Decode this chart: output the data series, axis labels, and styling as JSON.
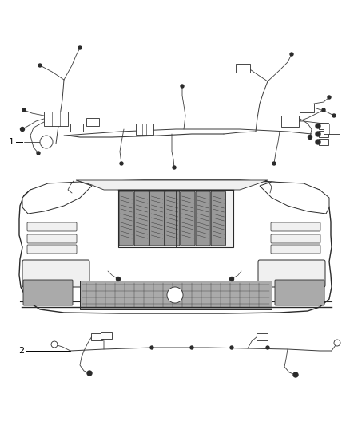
{
  "background_color": "#ffffff",
  "fig_width": 4.38,
  "fig_height": 5.33,
  "dpi": 100,
  "label_1": "1",
  "label_2": "2",
  "line_color": "#2a2a2a",
  "light_line": "#555555",
  "wire_color": "#3a3a3a",
  "fill_white": "#ffffff",
  "fill_light": "#f0f0f0",
  "fill_gray": "#cccccc",
  "fill_dark_gray": "#999999",
  "fill_mesh": "#aaaaaa"
}
